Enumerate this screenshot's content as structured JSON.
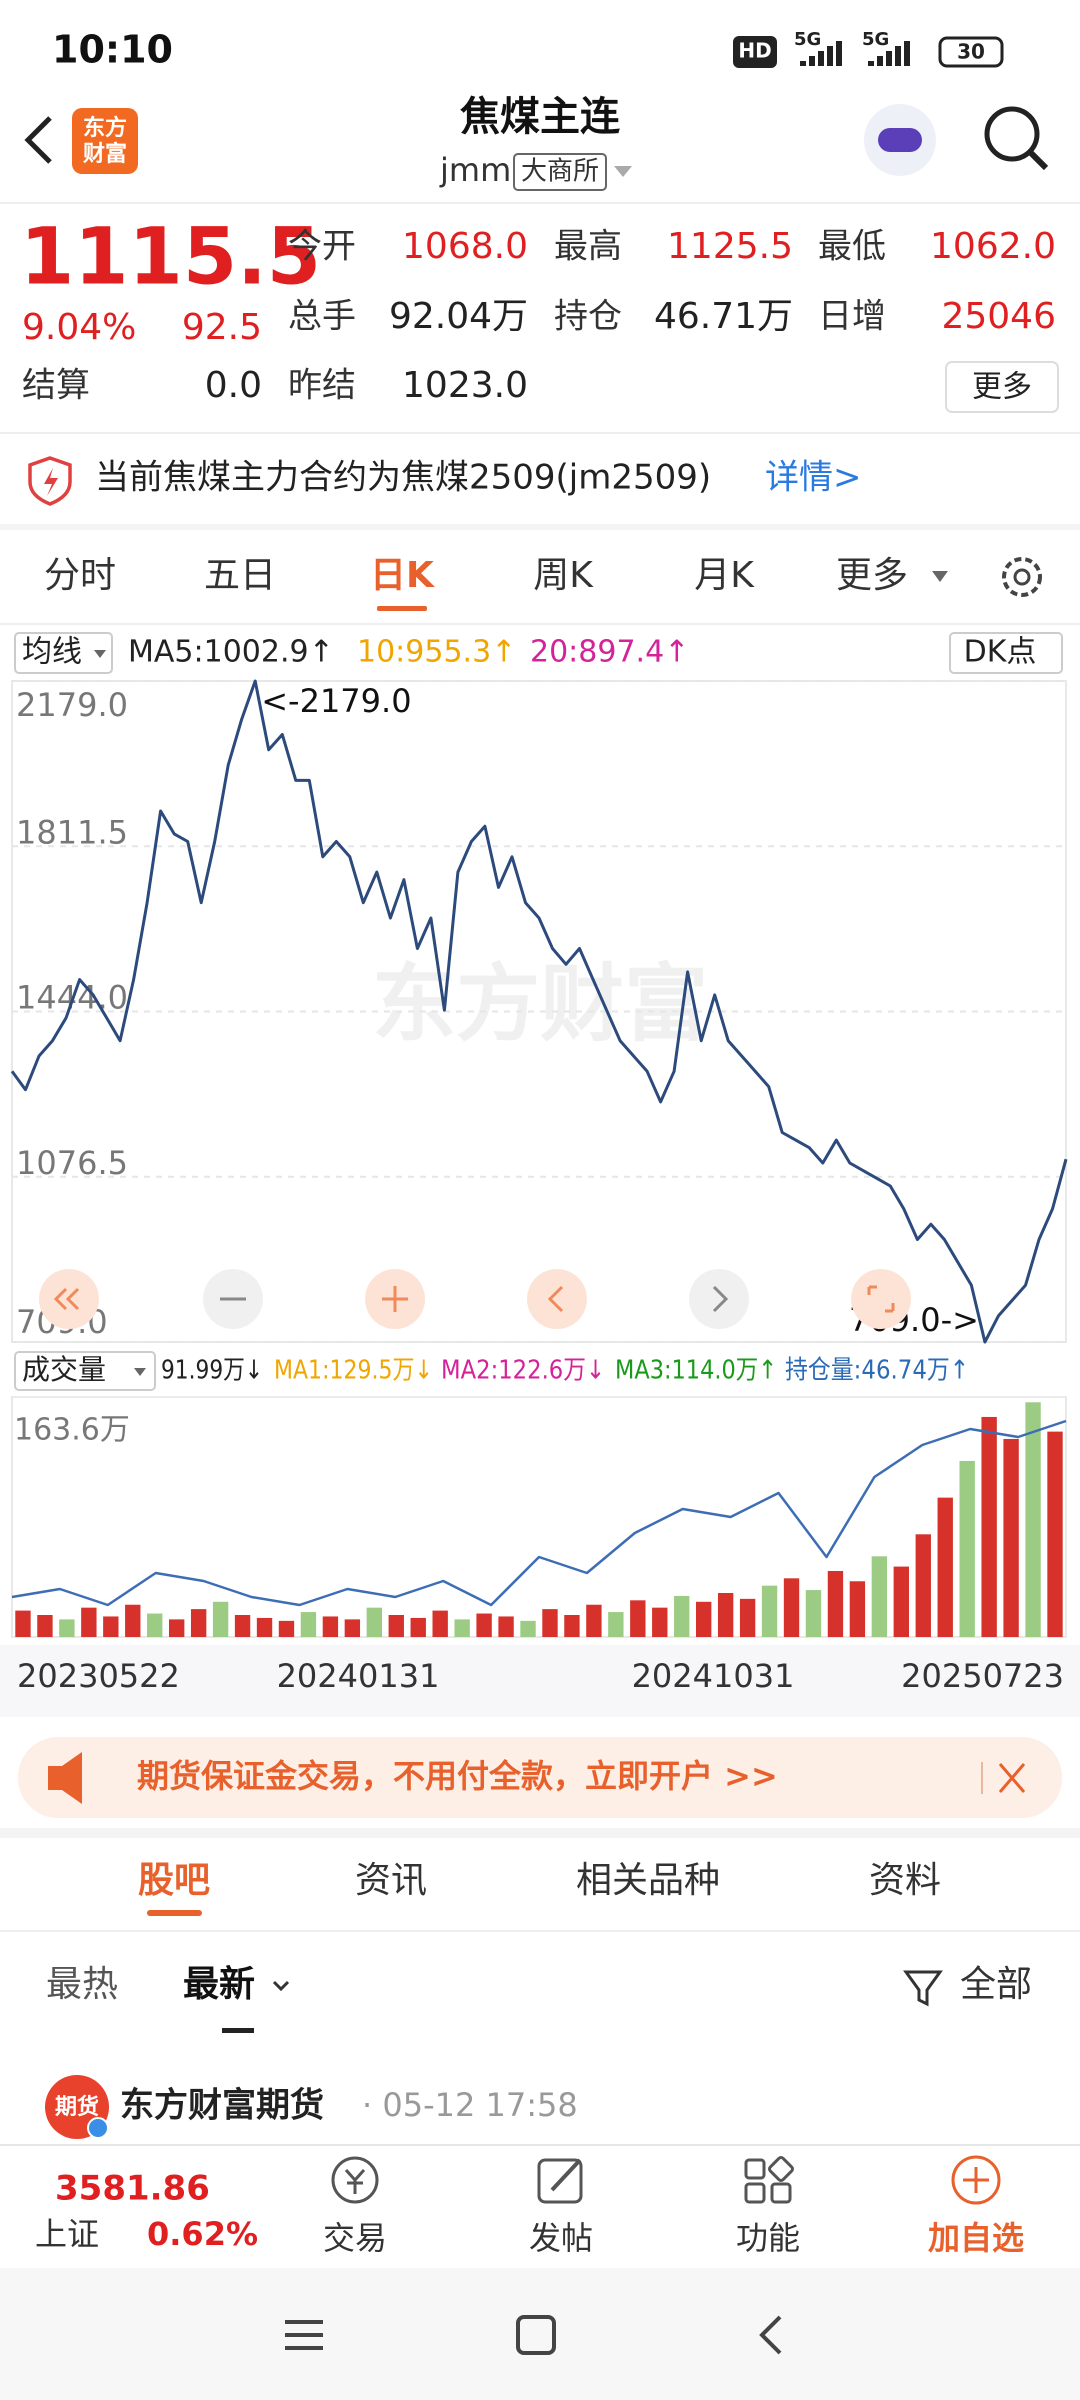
{
  "status_bar": {
    "time": "10:10",
    "hd": "HD",
    "signal_1": "5G",
    "signal_2": "5G",
    "battery": "30"
  },
  "header": {
    "logo_line_1": "东方",
    "logo_line_2": "财富",
    "title": "焦煤主连",
    "code": "jmm",
    "exchange": "大商所"
  },
  "quote": {
    "price": "1115.5",
    "change_pct": "9.04%",
    "change": "92.5",
    "settle_label": "结算",
    "settle_value": "0.0",
    "fields": [
      {
        "label": "今开",
        "value": "1068.0"
      },
      {
        "label": "最高",
        "value": "1125.5"
      },
      {
        "label": "最低",
        "value": "1062.0"
      },
      {
        "label": "总手",
        "value": "92.04万"
      },
      {
        "label": "持仓",
        "value": "46.71万"
      },
      {
        "label": "日增",
        "value": "25046"
      },
      {
        "label": "昨结",
        "value": "1023.0"
      }
    ],
    "more": "更多"
  },
  "notice": {
    "text": "当前焦煤主力合约为焦煤2509(jm2509)",
    "link": "详情>"
  },
  "period_tabs": [
    "分时",
    "五日",
    "日K",
    "周K",
    "月K",
    "更多"
  ],
  "ma_bar": {
    "menu": "均线",
    "items": [
      "MA5:1002.9↑",
      "10:955.3↑",
      "20:897.4↑"
    ],
    "dk": "DK点"
  },
  "chart_data": [
    {
      "type": "line",
      "color": "#2c4a7c",
      "watermark": "东方财富",
      "grid": true,
      "values": [
        1311,
        1270,
        1345,
        1379,
        1430,
        1515,
        1481,
        1430,
        1379,
        1515,
        1686,
        1890,
        1839,
        1822,
        1686,
        1822,
        1992,
        2094,
        2179,
        2026,
        2060,
        1958,
        1958,
        1788,
        1822,
        1788,
        1686,
        1754,
        1652,
        1737,
        1584,
        1652,
        1447,
        1754,
        1822,
        1856,
        1720,
        1788,
        1686,
        1652,
        1584,
        1549,
        1584,
        1515,
        1447,
        1379,
        1345,
        1311,
        1243,
        1311,
        1532,
        1379,
        1481,
        1379,
        1345,
        1311,
        1277,
        1175,
        1158,
        1141,
        1107,
        1158,
        1107,
        1090,
        1073,
        1056,
        1005,
        937,
        971,
        937,
        886,
        835,
        709,
        767,
        801,
        835,
        937,
        1005,
        1115.5
      ],
      "ylim": [
        709,
        2179
      ],
      "yticks": [
        {
          "value": 2179,
          "label": "2179.0"
        },
        {
          "value": 1811.5,
          "label": "1811.5"
        },
        {
          "value": 1444,
          "label": "1444.0"
        },
        {
          "value": 1076.5,
          "label": "1076.5"
        },
        {
          "value": 709,
          "label": "709.0"
        }
      ],
      "annotations": [
        "<-2179.0",
        "709.0->"
      ]
    },
    {
      "type": "bar",
      "menu": "成交量",
      "stats": [
        "91.99万↓",
        "MA1:129.5万↓",
        "MA2:122.6万↓",
        "MA3:114.0万↑",
        "持仓量:46.74万↑"
      ],
      "values": [
        18,
        15,
        12,
        20,
        14,
        22,
        16,
        12,
        19,
        24,
        15,
        13,
        11,
        17,
        14,
        12,
        20,
        15,
        13,
        18,
        12,
        16,
        14,
        11,
        19,
        15,
        22,
        17,
        25,
        20,
        28,
        24,
        30,
        26,
        35,
        40,
        32,
        45,
        38,
        55,
        48,
        70,
        95,
        120,
        150,
        135,
        160,
        140
      ],
      "colors": [
        "#d6322b",
        "#d6322b",
        "#9ccc84",
        "#d6322b",
        "#d6322b",
        "#d6322b",
        "#9ccc84",
        "#d6322b",
        "#d6322b",
        "#9ccc84",
        "#d6322b",
        "#d6322b",
        "#d6322b",
        "#9ccc84",
        "#d6322b",
        "#d6322b",
        "#9ccc84",
        "#d6322b",
        "#d6322b",
        "#d6322b",
        "#9ccc84",
        "#d6322b",
        "#d6322b",
        "#9ccc84",
        "#d6322b",
        "#d6322b",
        "#d6322b",
        "#9ccc84",
        "#d6322b",
        "#d6322b",
        "#9ccc84",
        "#d6322b",
        "#d6322b",
        "#d6322b",
        "#9ccc84",
        "#d6322b",
        "#9ccc84",
        "#d6322b",
        "#d6322b",
        "#9ccc84",
        "#d6322b",
        "#d6322b",
        "#d6322b",
        "#9ccc84",
        "#d6322b",
        "#d6322b",
        "#9ccc84",
        "#d6322b"
      ],
      "ylim": [
        0,
        163.6
      ],
      "yticks": [
        {
          "value": 163.6,
          "label": "163.6万"
        }
      ],
      "y2lim": [
        20,
        50
      ],
      "series": [
        {
          "color": "#3d6db5",
          "axis": "y2",
          "values": [
            25,
            26,
            24,
            28,
            27,
            25,
            24,
            26,
            25,
            27,
            24,
            30,
            28,
            33,
            36,
            35,
            38,
            30,
            40,
            44,
            46,
            45,
            47
          ]
        }
      ],
      "x_labels": [
        "20230522",
        "20240131",
        "20241031",
        "20250723"
      ]
    }
  ],
  "ad": {
    "text": "期货保证金交易，不用付全款，立即开户 >>"
  },
  "content_tabs": [
    "股吧",
    "资讯",
    "相关品种",
    "资料"
  ],
  "filters": {
    "hot": "最热",
    "latest": "最新",
    "all": "全部"
  },
  "post": {
    "badge": "期货",
    "author": "东方财富期货",
    "time": "· 05-12 17:58"
  },
  "bottom_bar": {
    "index_value": "3581.86",
    "index_name": "上证",
    "index_change": "0.62%",
    "items": [
      "交易",
      "发帖",
      "功能",
      "加自选"
    ]
  }
}
